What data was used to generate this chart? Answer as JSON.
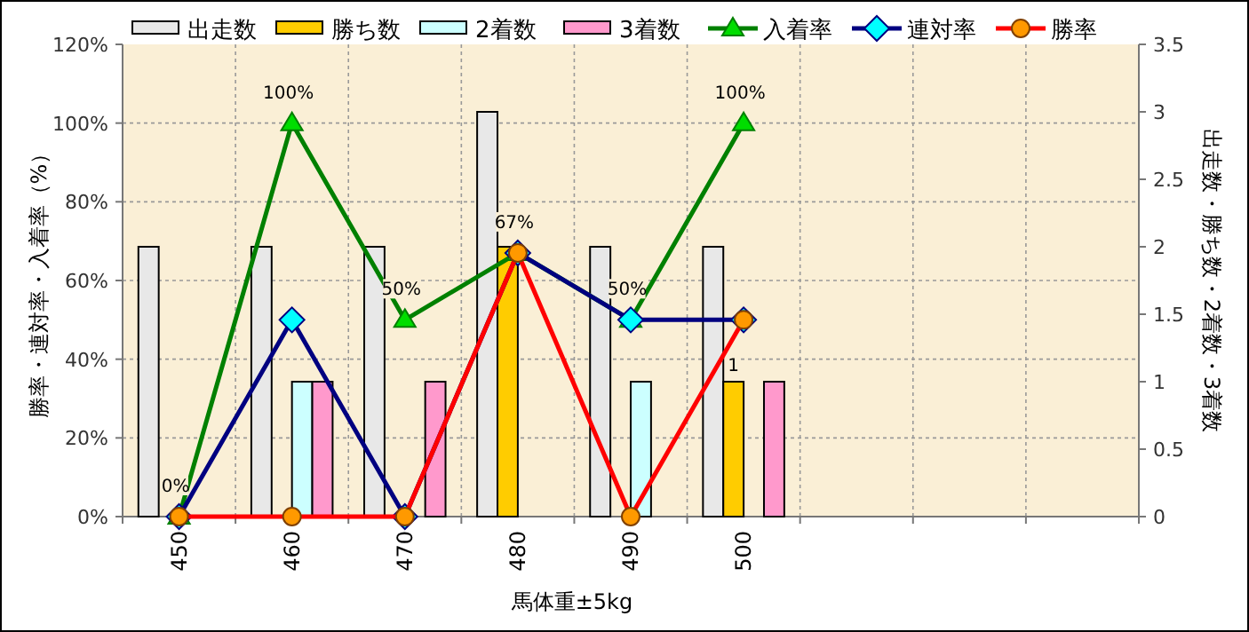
{
  "chart_data": {
    "type": "bar",
    "categories": [
      "450",
      "460",
      "470",
      "480",
      "490",
      "500",
      null,
      null,
      null
    ],
    "xlabel": "馬体重±5kg",
    "ylabel": "勝率・連対率・入着率（%）",
    "y2label": "出走数・勝ち数・2着数・3着数",
    "ylim": [
      0,
      120
    ],
    "yticks": [
      {
        "value": 0,
        "label": "0%"
      },
      {
        "value": 20,
        "label": "20%"
      },
      {
        "value": 40,
        "label": "40%"
      },
      {
        "value": 60,
        "label": "60%"
      },
      {
        "value": 80,
        "label": "80%"
      },
      {
        "value": 100,
        "label": "100%"
      },
      {
        "value": 120,
        "label": "120%"
      }
    ],
    "y2lim": [
      0,
      3.5
    ],
    "y2ticks": [
      0,
      0.5,
      1,
      1.5,
      2,
      2.5,
      3,
      3.5
    ],
    "grid": true,
    "legend": "top",
    "series": [
      {
        "name": "出走数",
        "axis": "y2",
        "color": "#e8e8e8",
        "values": [
          2,
          2,
          2,
          3,
          2,
          2,
          null,
          null,
          null
        ]
      },
      {
        "name": "勝ち数",
        "axis": "y2",
        "color": "#ffcc00",
        "values": [
          0,
          0,
          0,
          2,
          0,
          1,
          null,
          null,
          null
        ],
        "value_labels": [
          null,
          null,
          null,
          null,
          null,
          "1",
          null,
          null,
          null
        ]
      },
      {
        "name": "2着数",
        "axis": "y2",
        "color": "#ccffff",
        "values": [
          0,
          1,
          0,
          0,
          1,
          0,
          null,
          null,
          null
        ]
      },
      {
        "name": "3着数",
        "axis": "y2",
        "color": "#ff99cc",
        "values": [
          0,
          1,
          1,
          0,
          0,
          1,
          null,
          null,
          null
        ]
      },
      {
        "name": "入着率",
        "type": "line",
        "marker": "triangle",
        "color": "#008000",
        "values": [
          0,
          100,
          50,
          67,
          50,
          100,
          null,
          null,
          null
        ],
        "value_labels": [
          "0%",
          "100%",
          "50%",
          "67%",
          "50%",
          "100%",
          null,
          null,
          null
        ]
      },
      {
        "name": "連対率",
        "type": "line",
        "marker": "diamond",
        "color": "#000080",
        "values": [
          0,
          50,
          0,
          67,
          50,
          50,
          null,
          null,
          null
        ]
      },
      {
        "name": "勝率",
        "type": "line",
        "marker": "circle",
        "color": "#ff0000",
        "values": [
          0,
          0,
          0,
          67,
          0,
          50,
          null,
          null,
          null
        ]
      }
    ]
  }
}
